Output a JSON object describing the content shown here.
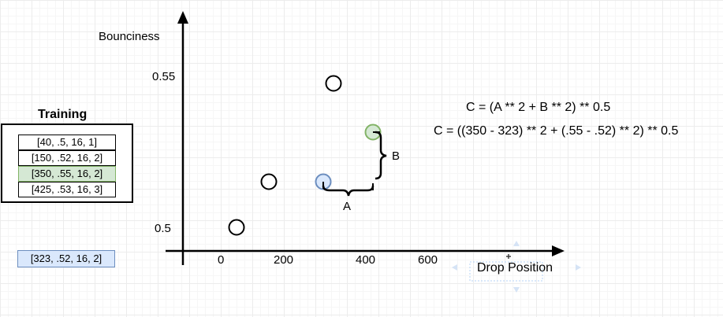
{
  "axes": {
    "y_label": "Bounciness",
    "x_label": "Drop Position",
    "y_ticks": [
      "0.55",
      "0.5"
    ],
    "x_ticks": [
      "0",
      "200",
      "400",
      "600"
    ]
  },
  "braces": {
    "a_label": "A",
    "b_label": "B"
  },
  "formulas": [
    "C = (A ** 2 + B ** 2) ** 0.5",
    "C = ((350 - 323) ** 2 + (.55 - .52) ** 2) ** 0.5"
  ],
  "training": {
    "title": "Training",
    "rows": [
      "[40, .5, 16, 1]",
      "[150, .52, 16, 2]",
      "[350, .55, 16, 2]",
      "[425, .53, 16, 3]"
    ],
    "highlighted_row": 2
  },
  "test_point": "[323, .52, 16, 2]",
  "colors": {
    "training_highlight_fill": "#d5e8d4",
    "training_highlight_stroke": "#82b366",
    "test_fill": "#dae8fc",
    "test_stroke": "#6c8ebf"
  }
}
